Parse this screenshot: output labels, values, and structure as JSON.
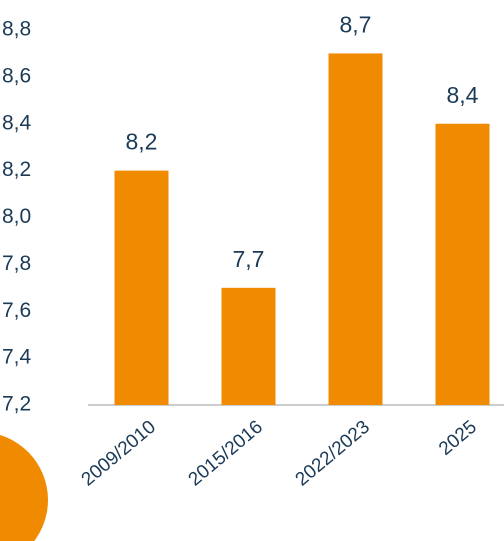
{
  "chart_data": {
    "type": "bar",
    "categories": [
      "2009/2010",
      "2015/2016",
      "2022/2023",
      "2025"
    ],
    "values": [
      8.2,
      7.7,
      8.7,
      8.4
    ],
    "value_labels": [
      "8,2",
      "7,7",
      "8,7",
      "8,4"
    ],
    "color": "#f08a00",
    "ylim": [
      7.2,
      8.8
    ],
    "yticks": [
      {
        "value": 7.2,
        "label": "7,2"
      },
      {
        "value": 7.4,
        "label": "7,4"
      },
      {
        "value": 7.6,
        "label": "7,6"
      },
      {
        "value": 7.8,
        "label": "7,8"
      },
      {
        "value": 8.0,
        "label": "8,0"
      },
      {
        "value": 8.2,
        "label": "8,2"
      },
      {
        "value": 8.4,
        "label": "8,4"
      },
      {
        "value": 8.6,
        "label": "8,6"
      },
      {
        "value": 8.8,
        "label": "8,8"
      }
    ],
    "grid": false
  }
}
